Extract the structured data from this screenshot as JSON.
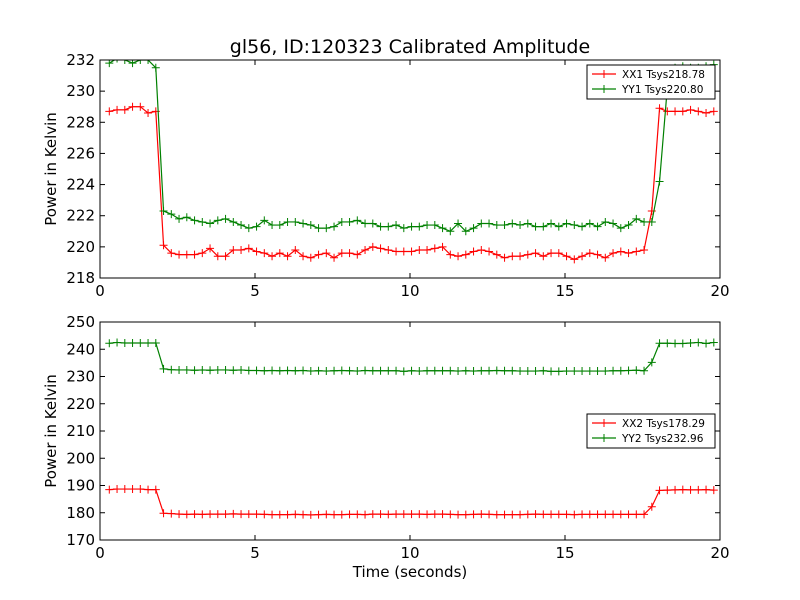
{
  "figure_title": "gl56, ID:120323 Calibrated Amplitude",
  "colors": {
    "red": "#ff0000",
    "green": "#008000"
  },
  "chart_data": [
    {
      "type": "line",
      "title": "gl56, ID:120323 Calibrated Amplitude",
      "xlabel": "",
      "ylabel": "Power in Kelvin",
      "xlim": [
        0,
        20
      ],
      "ylim": [
        218,
        232
      ],
      "xticks": [
        0,
        5,
        10,
        15,
        20
      ],
      "yticks": [
        218,
        220,
        222,
        224,
        226,
        228,
        230,
        232
      ],
      "legend_position": "top-right",
      "grid": false,
      "x": [
        0.3,
        0.55,
        0.8,
        1.05,
        1.3,
        1.55,
        1.8,
        2.05,
        2.3,
        2.55,
        2.8,
        3.05,
        3.3,
        3.55,
        3.8,
        4.05,
        4.3,
        4.55,
        4.8,
        5.05,
        5.3,
        5.55,
        5.8,
        6.05,
        6.3,
        6.55,
        6.8,
        7.05,
        7.3,
        7.55,
        7.8,
        8.05,
        8.3,
        8.55,
        8.8,
        9.05,
        9.3,
        9.55,
        9.8,
        10.05,
        10.3,
        10.55,
        10.8,
        11.05,
        11.3,
        11.55,
        11.8,
        12.05,
        12.3,
        12.55,
        12.8,
        13.05,
        13.3,
        13.55,
        13.8,
        14.05,
        14.3,
        14.55,
        14.8,
        15.05,
        15.3,
        15.55,
        15.8,
        16.05,
        16.3,
        16.55,
        16.8,
        17.05,
        17.3,
        17.55,
        17.8,
        18.05,
        18.3,
        18.55,
        18.8,
        19.05,
        19.3,
        19.55,
        19.8
      ],
      "series": [
        {
          "name": "XX1 Tsys218.78",
          "color": "#ff0000",
          "values": [
            228.7,
            228.8,
            228.8,
            229.0,
            229.0,
            228.6,
            228.7,
            220.1,
            219.6,
            219.5,
            219.5,
            219.5,
            219.6,
            219.9,
            219.4,
            219.4,
            219.8,
            219.8,
            219.9,
            219.7,
            219.6,
            219.4,
            219.6,
            219.4,
            219.8,
            219.4,
            219.3,
            219.5,
            219.6,
            219.3,
            219.6,
            219.6,
            219.5,
            219.8,
            220.0,
            219.9,
            219.8,
            219.7,
            219.7,
            219.7,
            219.8,
            219.8,
            219.9,
            220.0,
            219.5,
            219.4,
            219.5,
            219.7,
            219.8,
            219.7,
            219.5,
            219.3,
            219.4,
            219.4,
            219.5,
            219.6,
            219.4,
            219.6,
            219.6,
            219.4,
            219.2,
            219.4,
            219.6,
            219.5,
            219.3,
            219.6,
            219.7,
            219.6,
            219.7,
            219.8,
            222.3,
            228.9,
            228.7,
            228.7,
            228.7,
            228.8,
            228.7,
            228.6,
            228.7
          ]
        },
        {
          "name": "YY1 Tsys220.80",
          "color": "#008000",
          "values": [
            231.8,
            232.1,
            232.0,
            231.8,
            232.0,
            232.0,
            231.5,
            222.3,
            222.1,
            221.8,
            221.9,
            221.7,
            221.6,
            221.5,
            221.7,
            221.8,
            221.6,
            221.4,
            221.2,
            221.3,
            221.7,
            221.4,
            221.4,
            221.6,
            221.6,
            221.5,
            221.4,
            221.2,
            221.2,
            221.3,
            221.6,
            221.6,
            221.7,
            221.5,
            221.5,
            221.3,
            221.3,
            221.4,
            221.2,
            221.3,
            221.3,
            221.4,
            221.4,
            221.2,
            221.0,
            221.5,
            221.0,
            221.2,
            221.5,
            221.5,
            221.4,
            221.4,
            221.5,
            221.4,
            221.5,
            221.3,
            221.3,
            221.5,
            221.3,
            221.5,
            221.4,
            221.3,
            221.5,
            221.3,
            221.6,
            221.5,
            221.2,
            221.4,
            221.8,
            221.6,
            221.6,
            224.2,
            230.2,
            231.5,
            231.6,
            231.5,
            231.5,
            231.6,
            231.7
          ]
        }
      ]
    },
    {
      "type": "line",
      "title": "",
      "xlabel": "Time (seconds)",
      "ylabel": "Power in Kelvin",
      "xlim": [
        0,
        20
      ],
      "ylim": [
        170,
        250
      ],
      "xticks": [
        0,
        5,
        10,
        15,
        20
      ],
      "yticks": [
        170,
        180,
        190,
        200,
        210,
        220,
        230,
        240,
        250
      ],
      "legend_position": "center-right",
      "grid": false,
      "x": [
        0.3,
        0.55,
        0.8,
        1.05,
        1.3,
        1.55,
        1.8,
        2.05,
        2.3,
        2.55,
        2.8,
        3.05,
        3.3,
        3.55,
        3.8,
        4.05,
        4.3,
        4.55,
        4.8,
        5.05,
        5.3,
        5.55,
        5.8,
        6.05,
        6.3,
        6.55,
        6.8,
        7.05,
        7.3,
        7.55,
        7.8,
        8.05,
        8.3,
        8.55,
        8.8,
        9.05,
        9.3,
        9.55,
        9.8,
        10.05,
        10.3,
        10.55,
        10.8,
        11.05,
        11.3,
        11.55,
        11.8,
        12.05,
        12.3,
        12.55,
        12.8,
        13.05,
        13.3,
        13.55,
        13.8,
        14.05,
        14.3,
        14.55,
        14.8,
        15.05,
        15.3,
        15.55,
        15.8,
        16.05,
        16.3,
        16.55,
        16.8,
        17.05,
        17.3,
        17.55,
        17.8,
        18.05,
        18.3,
        18.55,
        18.8,
        19.05,
        19.3,
        19.55,
        19.8
      ],
      "series": [
        {
          "name": "XX2 Tsys178.29",
          "color": "#ff0000",
          "values": [
            188.5,
            188.7,
            188.7,
            188.7,
            188.7,
            188.5,
            188.5,
            179.8,
            179.7,
            179.5,
            179.4,
            179.5,
            179.4,
            179.5,
            179.5,
            179.5,
            179.6,
            179.5,
            179.5,
            179.5,
            179.4,
            179.3,
            179.3,
            179.3,
            179.4,
            179.3,
            179.2,
            179.3,
            179.4,
            179.3,
            179.3,
            179.4,
            179.4,
            179.3,
            179.5,
            179.5,
            179.4,
            179.5,
            179.5,
            179.5,
            179.5,
            179.4,
            179.5,
            179.5,
            179.4,
            179.3,
            179.3,
            179.4,
            179.5,
            179.4,
            179.3,
            179.3,
            179.3,
            179.3,
            179.4,
            179.5,
            179.4,
            179.4,
            179.4,
            179.4,
            179.3,
            179.4,
            179.4,
            179.4,
            179.4,
            179.4,
            179.4,
            179.4,
            179.4,
            179.4,
            182.2,
            188.2,
            188.3,
            188.4,
            188.5,
            188.4,
            188.4,
            188.5,
            188.3
          ]
        },
        {
          "name": "YY2 Tsys232.96",
          "color": "#008000",
          "values": [
            242.2,
            242.5,
            242.3,
            242.3,
            242.3,
            242.3,
            242.3,
            232.8,
            232.5,
            232.4,
            232.4,
            232.3,
            232.4,
            232.3,
            232.4,
            232.4,
            232.3,
            232.4,
            232.2,
            232.2,
            232.1,
            232.2,
            232.1,
            232.2,
            232.1,
            232.2,
            232.0,
            232.1,
            232.0,
            232.1,
            232.2,
            232.1,
            232.0,
            232.2,
            232.1,
            232.1,
            232.1,
            232.1,
            231.9,
            232.1,
            232.0,
            232.1,
            232.1,
            232.1,
            232.1,
            232.0,
            232.1,
            232.0,
            232.1,
            232.1,
            232.2,
            232.1,
            232.1,
            232.0,
            232.0,
            232.0,
            232.1,
            231.9,
            231.9,
            232.0,
            232.0,
            232.0,
            232.0,
            232.0,
            232.0,
            232.1,
            232.1,
            232.2,
            232.3,
            232.1,
            235.2,
            242.2,
            242.2,
            242.1,
            242.1,
            242.3,
            242.5,
            242.1,
            242.5
          ]
        }
      ]
    }
  ]
}
